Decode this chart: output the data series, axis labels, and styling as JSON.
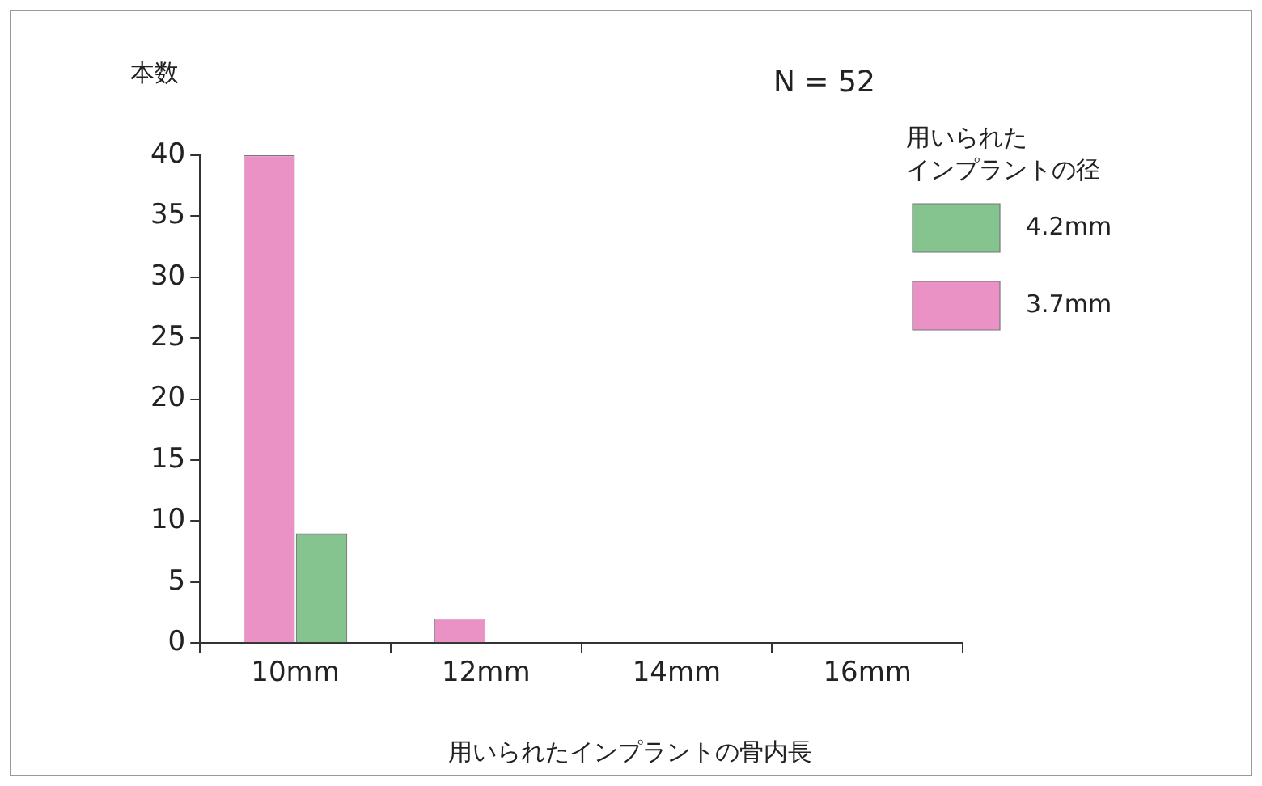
{
  "chart_data": {
    "type": "bar",
    "ylabel": "本数",
    "xlabel": "用いられたインプラントの骨内長",
    "legend_title": "用いられたインプラントの径",
    "annotations": [
      "N = 52"
    ],
    "categories": [
      "10mm",
      "12mm",
      "14mm",
      "16mm"
    ],
    "series": [
      {
        "name": "4.2mm",
        "color": "#86c48f",
        "values": [
          9,
          0,
          0,
          0
        ]
      },
      {
        "name": "3.7mm",
        "color": "#ea92c6",
        "values": [
          40,
          2,
          0,
          0
        ]
      }
    ],
    "ylim": [
      0,
      40
    ],
    "yticks": [
      0,
      5,
      10,
      15,
      20,
      25,
      30,
      35,
      40
    ],
    "grid": false,
    "legend": "top right"
  }
}
